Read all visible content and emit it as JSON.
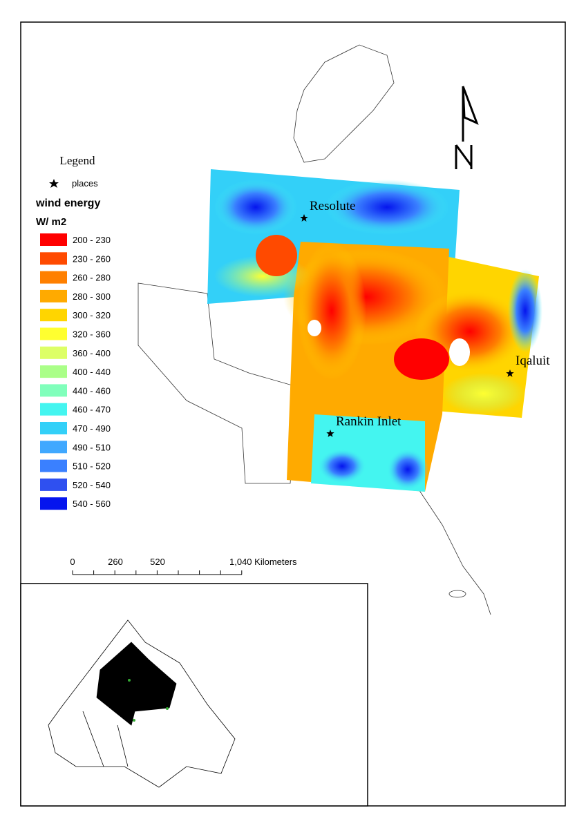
{
  "legend": {
    "title": "Legend",
    "places_label": "places",
    "layer_title": "wind energy",
    "unit": "W/ m2",
    "classes": [
      {
        "label": "200 - 230",
        "color": "#ff0000"
      },
      {
        "label": "230 - 260",
        "color": "#ff4a00"
      },
      {
        "label": "260 - 280",
        "color": "#ff8000"
      },
      {
        "label": "280 - 300",
        "color": "#ffaa00"
      },
      {
        "label": "300 - 320",
        "color": "#ffd500"
      },
      {
        "label": "320 - 360",
        "color": "#ffff30"
      },
      {
        "label": "360 - 400",
        "color": "#ddff66"
      },
      {
        "label": "400 - 440",
        "color": "#aaff88"
      },
      {
        "label": "440 - 460",
        "color": "#80ffbb"
      },
      {
        "label": "460 - 470",
        "color": "#44f5f0"
      },
      {
        "label": "470 - 490",
        "color": "#33d0f8"
      },
      {
        "label": "490 - 510",
        "color": "#40a8ff"
      },
      {
        "label": "510 - 520",
        "color": "#3a80ff"
      },
      {
        "label": "520 - 540",
        "color": "#2f50f0"
      },
      {
        "label": "540 - 560",
        "color": "#0515ee"
      }
    ]
  },
  "places": [
    {
      "name": "Resolute"
    },
    {
      "name": "Iqaluit"
    },
    {
      "name": "Rankin Inlet"
    }
  ],
  "scale_bar": {
    "labels": [
      "0",
      "260",
      "520",
      "1,040 Kilometers"
    ]
  }
}
